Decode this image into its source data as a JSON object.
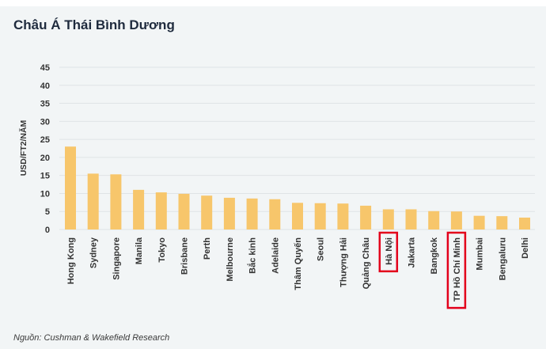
{
  "header": {
    "title": "Châu Á Thái Bình Dương"
  },
  "footer": {
    "source": "Nguồn: Cushman & Wakefield Research"
  },
  "colors": {
    "bar": "#f7c66b",
    "grid": "#dfe4e6",
    "highlight_box": "#e3001b",
    "background": "#f2f5f6"
  },
  "chart_data": {
    "type": "bar",
    "title": "Châu Á Thái Bình Dương",
    "xlabel": "",
    "ylabel": "USD/FT2/NĂM",
    "ylim": [
      0,
      45
    ],
    "yticks": [
      0,
      5,
      10,
      15,
      20,
      25,
      30,
      35,
      40,
      45
    ],
    "grid": true,
    "categories": [
      "Hong Kong",
      "Sydney",
      "Singapore",
      "Manila",
      "Tokyo",
      "Brisbane",
      "Perth",
      "Melbourne",
      "Bắc kinh",
      "Adelaide",
      "Thâm Quyến",
      "Seoul",
      "Thượng Hải",
      "Quảng Châu",
      "Hà Nội",
      "Jakarta",
      "Bangkok",
      "TP Hồ Chí Minh",
      "Mumbai",
      "Bengaluru",
      "Delhi"
    ],
    "values": [
      23.0,
      15.5,
      15.3,
      11.0,
      10.3,
      9.9,
      9.4,
      8.8,
      8.6,
      8.4,
      7.4,
      7.3,
      7.2,
      6.6,
      5.6,
      5.6,
      5.1,
      5.0,
      3.8,
      3.7,
      3.3
    ],
    "highlighted": [
      "Hà Nội",
      "TP Hồ Chí Minh"
    ]
  }
}
